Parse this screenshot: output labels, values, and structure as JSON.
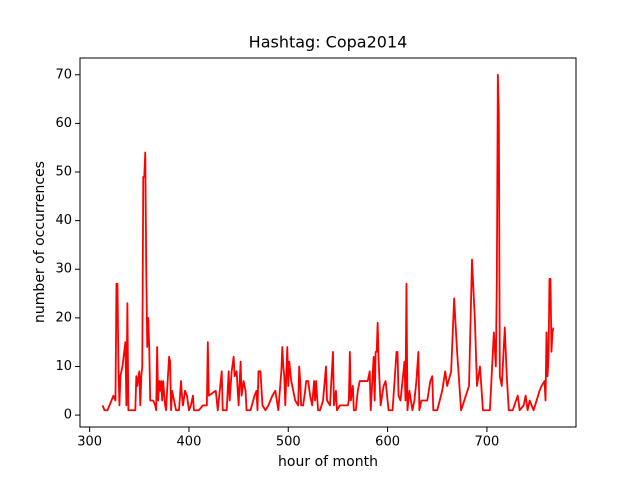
{
  "chart_data": {
    "type": "line",
    "title": "Hashtag: Copa2014",
    "xlabel": "hour of month",
    "ylabel": "number of occurrences",
    "x": [
      313,
      315,
      318,
      322,
      324,
      326,
      327,
      328,
      329,
      330,
      331,
      333,
      336,
      337,
      338,
      339,
      342,
      346,
      347,
      348,
      350,
      351,
      352,
      353,
      354,
      355,
      356,
      357,
      358,
      359,
      360,
      361,
      364,
      366,
      367,
      368,
      369,
      370,
      371,
      372,
      373,
      374,
      376,
      377,
      378,
      380,
      381,
      382,
      383,
      385,
      387,
      390,
      392,
      393,
      394,
      396,
      398,
      400,
      402,
      404,
      405,
      407,
      410,
      414,
      418,
      419,
      420,
      427,
      429,
      433,
      434,
      438,
      440,
      441,
      443,
      445,
      446,
      448,
      450,
      452,
      453,
      455,
      457,
      458,
      462,
      466,
      468,
      469,
      470,
      472,
      474,
      477,
      480,
      484,
      487,
      490,
      493,
      494,
      495,
      496,
      497,
      499,
      500,
      501,
      503,
      505,
      507,
      510,
      511,
      512,
      513,
      515,
      517,
      518,
      520,
      522,
      524,
      526,
      527,
      528,
      530,
      532,
      535,
      538,
      539,
      542,
      545,
      546,
      548,
      549,
      552,
      555,
      560,
      561,
      562,
      563,
      565,
      566,
      568,
      570,
      572,
      575,
      580,
      582,
      583,
      586,
      587,
      588,
      589,
      590,
      591,
      593,
      596,
      598,
      601,
      605,
      609,
      610,
      611,
      613,
      615,
      617,
      618,
      619,
      620,
      622,
      625,
      627,
      629,
      631,
      632,
      634,
      638,
      640,
      643,
      645,
      646,
      650,
      655,
      658,
      660,
      664,
      667,
      670,
      674,
      682,
      685,
      688,
      690,
      693,
      696,
      703,
      707,
      709,
      710,
      711,
      712,
      713,
      715,
      718,
      720,
      722,
      726,
      731,
      733,
      737,
      739,
      741,
      743,
      747,
      753,
      755,
      758,
      759,
      760,
      761,
      762,
      763,
      764,
      765,
      766,
      767
    ],
    "series": [
      {
        "name": "Copa2014",
        "color": "#ff0000",
        "values": [
          2,
          1,
          1,
          3,
          4,
          3,
          27,
          27,
          10,
          2,
          8,
          10,
          15,
          2,
          23,
          1,
          1,
          1,
          8,
          6,
          9,
          2,
          8,
          10,
          49,
          49,
          54,
          30,
          14,
          20,
          14,
          3,
          3,
          2,
          1,
          14,
          3,
          7,
          5,
          7,
          3,
          7,
          2,
          1,
          5,
          12,
          11,
          1,
          5,
          3,
          1,
          1,
          7,
          4,
          2,
          5,
          4,
          1,
          2,
          4,
          1,
          1,
          1,
          2,
          2,
          15,
          4,
          5,
          1,
          9,
          1,
          1,
          9,
          3,
          9,
          12,
          8,
          9,
          2,
          11,
          4,
          7,
          5,
          1,
          1,
          4,
          5,
          1,
          9,
          9,
          2,
          1,
          2,
          4,
          5,
          1,
          9,
          14,
          10,
          8,
          2,
          14,
          6,
          11,
          7,
          5,
          3,
          2,
          10,
          7,
          2,
          2,
          5,
          7,
          7,
          4,
          2,
          7,
          3,
          7,
          1,
          1,
          3,
          10,
          3,
          2,
          13,
          2,
          5,
          1,
          2,
          2,
          2,
          3,
          13,
          3,
          6,
          1,
          1,
          5,
          7,
          7,
          7,
          9,
          1,
          12,
          3,
          13,
          13,
          19,
          11,
          2,
          6,
          7,
          1,
          1,
          13,
          13,
          4,
          3,
          7,
          11,
          3,
          27,
          1,
          5,
          1,
          3,
          7,
          13,
          1,
          3,
          3,
          3,
          7,
          8,
          1,
          1,
          5,
          9,
          6,
          9,
          24,
          13,
          1,
          6,
          32,
          19,
          6,
          10,
          1,
          1,
          17,
          10,
          28,
          70,
          62,
          8,
          6,
          18,
          8,
          1,
          1,
          4,
          1,
          2,
          4,
          1,
          3,
          1,
          5,
          6,
          7,
          3,
          17,
          8,
          12,
          28,
          28,
          13,
          17,
          18
        ]
      }
    ],
    "xlim": [
      290.3,
      789.7
    ],
    "ylim": [
      -2.45,
      73.45
    ],
    "xticks": [
      300,
      400,
      500,
      600,
      700
    ],
    "yticks": [
      0,
      10,
      20,
      30,
      40,
      50,
      60,
      70
    ],
    "grid": false
  }
}
